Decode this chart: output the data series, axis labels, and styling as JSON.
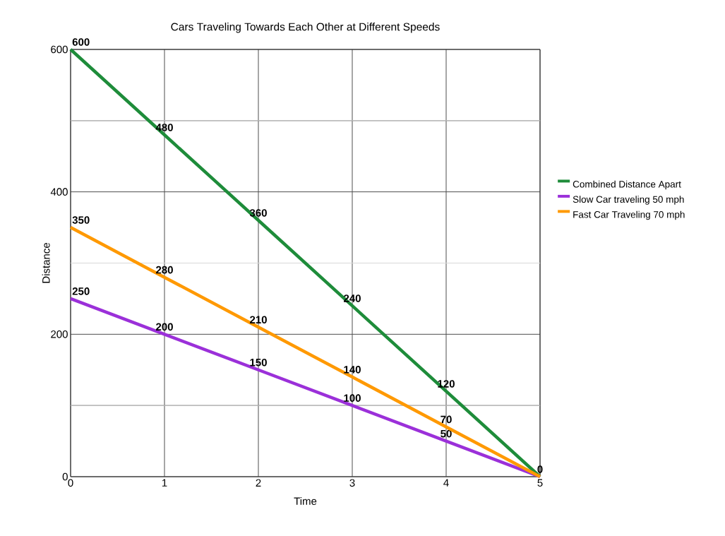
{
  "chart_data": {
    "type": "line",
    "title": "Cars Traveling Towards Each Other at Different Speeds",
    "xlabel": "Time",
    "ylabel": "Distance",
    "x": [
      0,
      1,
      2,
      3,
      4,
      5
    ],
    "series": [
      {
        "name": "Combined Distance Apart",
        "color": "#1e8c3a",
        "values": [
          600,
          480,
          360,
          240,
          120,
          0
        ],
        "value_labels": [
          "600",
          "480",
          "360",
          "240",
          "120",
          "0"
        ]
      },
      {
        "name": "Slow Car traveling 50 mph",
        "color": "#9b30d9",
        "values": [
          250,
          200,
          150,
          100,
          50,
          0
        ],
        "value_labels": [
          "250",
          "200",
          "150",
          "100",
          "50",
          null
        ]
      },
      {
        "name": "Fast Car Traveling 70 mph",
        "color": "#ff9900",
        "values": [
          350,
          280,
          210,
          140,
          70,
          0
        ],
        "value_labels": [
          "350",
          "280",
          "210",
          "140",
          "70",
          null
        ]
      }
    ],
    "xlim": [
      0,
      5
    ],
    "xticks": [
      0,
      1,
      2,
      3,
      4,
      5
    ],
    "ylim": [
      0,
      600
    ],
    "yticks": [
      0,
      {
        "value": 100,
        "label": null
      },
      200,
      {
        "value": 300,
        "label": null
      },
      400,
      {
        "value": 500,
        "label": null
      },
      600
    ],
    "grid": true,
    "legend": "right",
    "marker": "none",
    "line_style": "solid"
  }
}
